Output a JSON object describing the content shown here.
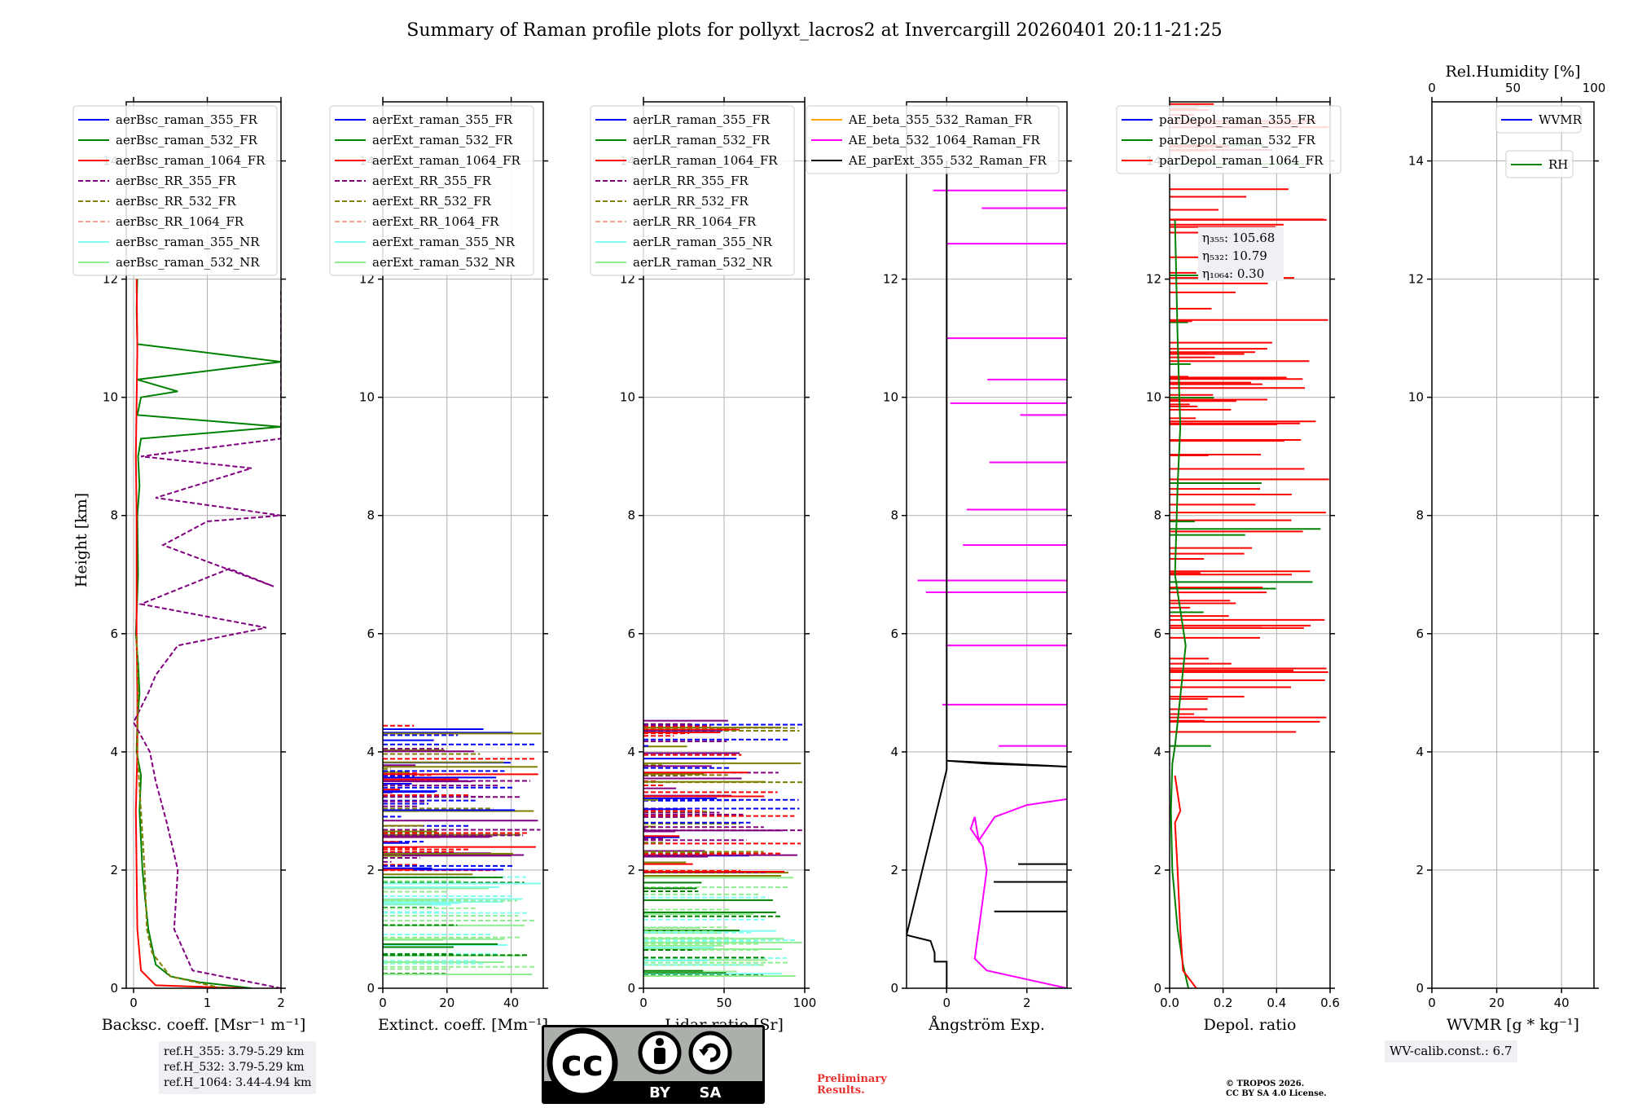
{
  "title": "Summary of Raman profile plots for pollyxt_lacros2 at Invercargill 20260401 20:11-21:25",
  "ylabel": "Height [km]",
  "chart_data": [
    {
      "type": "line",
      "name": "backscatter",
      "xlabel": "Backsc. coeff. [Msr⁻¹ m⁻¹]",
      "xlim": [
        -0.1,
        2
      ],
      "ylim": [
        0,
        15
      ],
      "xticks": [
        0,
        1,
        2
      ],
      "yticks": [
        0,
        2,
        4,
        6,
        8,
        10,
        12,
        14
      ],
      "legend": [
        "aerBsc_raman_355_FR",
        "aerBsc_raman_532_FR",
        "aerBsc_raman_1064_FR",
        "aerBsc_RR_355_FR",
        "aerBsc_RR_532_FR",
        "aerBsc_RR_1064_FR",
        "aerBsc_raman_355_NR",
        "aerBsc_raman_532_NR"
      ],
      "series": [
        {
          "name": "aerBsc_raman_532_FR",
          "color": "#008000",
          "dash": false,
          "x": [
            1.6,
            0.9,
            0.5,
            0.3,
            0.2,
            0.15,
            0.12,
            0.1,
            0.08,
            0.1,
            0.04,
            0.05,
            0.08,
            0.06,
            0.03,
            0.06,
            0.05,
            0.08,
            0.06,
            0.1,
            2.0,
            0.05,
            0.1,
            0.6,
            0.05,
            2.0,
            0.05,
            0.04,
            0.05
          ],
          "y": [
            0.0,
            0.1,
            0.2,
            0.4,
            1.0,
            1.6,
            2.0,
            2.5,
            3.0,
            3.6,
            4.0,
            4.5,
            5.0,
            5.5,
            6.0,
            7.0,
            8.0,
            8.5,
            9.0,
            9.3,
            9.5,
            9.7,
            10.0,
            10.1,
            10.3,
            10.6,
            10.9,
            11.5,
            12.0
          ]
        },
        {
          "name": "aerBsc_raman_1064_FR",
          "color": "#ff0000",
          "dash": false,
          "x": [
            1.5,
            0.3,
            0.1,
            0.05,
            0.04,
            0.03,
            0.05,
            0.05,
            0.04,
            0.04,
            0.03,
            0.05,
            0.04
          ],
          "y": [
            0.0,
            0.05,
            0.3,
            1.0,
            2.0,
            3.0,
            4.0,
            5.0,
            6.0,
            8.0,
            9.0,
            10.8,
            12.0
          ]
        },
        {
          "name": "aerBsc_RR_355_FR",
          "color": "#800080",
          "dash": true,
          "x": [
            2.0,
            0.8,
            0.55,
            0.6,
            0.45,
            0.3,
            0.22,
            0.0,
            0.2,
            0.3,
            0.6,
            1.8,
            0.1,
            1.3,
            1.9,
            0.4,
            1.0,
            2.0,
            0.3,
            1.6,
            0.1,
            2.0,
            2.0
          ],
          "y": [
            0.0,
            0.3,
            1.0,
            2.0,
            2.8,
            3.5,
            4.0,
            4.5,
            5.0,
            5.3,
            5.8,
            6.1,
            6.5,
            7.1,
            6.8,
            7.5,
            7.9,
            8.0,
            8.3,
            8.8,
            9.0,
            9.3,
            11.8
          ]
        },
        {
          "name": "aerBsc_RR_532_FR",
          "color": "#808000",
          "dash": true,
          "x": [
            1.2,
            0.5,
            0.25,
            0.18,
            0.15,
            0.1,
            0.05,
            0.06,
            0.04
          ],
          "y": [
            0.0,
            0.2,
            0.6,
            1.0,
            2.0,
            3.0,
            4.0,
            5.0,
            6.0
          ]
        }
      ]
    },
    {
      "type": "line",
      "name": "extinction",
      "xlabel": "Extinct. coeff. [Mm⁻¹]",
      "xlim": [
        0,
        50
      ],
      "ylim": [
        0,
        15
      ],
      "xticks": [
        0,
        20,
        40
      ],
      "yticks": [
        0,
        2,
        4,
        6,
        8,
        10,
        12,
        14
      ],
      "legend": [
        "aerExt_raman_355_FR",
        "aerExt_raman_532_FR",
        "aerExt_raman_1064_FR",
        "aerExt_RR_355_FR",
        "aerExt_RR_532_FR",
        "aerExt_RR_1064_FR",
        "aerExt_raman_355_NR",
        "aerExt_raman_532_NR"
      ],
      "series": []
    },
    {
      "type": "line",
      "name": "lidar-ratio",
      "xlabel": "Lidar ratio [Sr]",
      "xlim": [
        0,
        100
      ],
      "ylim": [
        0,
        15
      ],
      "xticks": [
        0,
        50,
        100
      ],
      "yticks": [
        0,
        2,
        4,
        6,
        8,
        10,
        12,
        14
      ],
      "legend": [
        "aerLR_raman_355_FR",
        "aerLR_raman_532_FR",
        "aerLR_raman_1064_FR",
        "aerLR_RR_355_FR",
        "aerLR_RR_532_FR",
        "aerLR_RR_1064_FR",
        "aerLR_raman_355_NR",
        "aerLR_raman_532_NR"
      ],
      "series": []
    },
    {
      "type": "line",
      "name": "angstrom",
      "xlabel": "Ångström Exp.",
      "xlim": [
        -1,
        3
      ],
      "ylim": [
        0,
        15
      ],
      "xticks": [
        0,
        2
      ],
      "yticks": [
        0,
        2,
        4,
        6,
        8,
        10,
        12,
        14
      ],
      "legend": [
        "AE_beta_355_532_Raman_FR",
        "AE_beta_532_1064_Raman_FR",
        "AE_parExt_355_532_Raman_FR"
      ],
      "series": [
        {
          "name": "AE_beta_532_1064_Raman_FR",
          "color": "#ff00ff",
          "dash": false,
          "x": [
            3.0,
            1.0,
            0.7,
            0.8,
            0.9,
            1.0,
            0.9,
            0.6,
            0.7,
            0.8,
            1.2,
            1.6,
            2.0,
            3.0
          ],
          "y": [
            0.0,
            0.3,
            0.5,
            1.0,
            1.5,
            2.0,
            2.4,
            2.7,
            2.9,
            2.5,
            2.9,
            3.0,
            3.1,
            3.2
          ]
        },
        {
          "name": "AE_parExt_355_532_Raman_FR",
          "color": "#000000",
          "dash": false,
          "x": [
            0.0,
            0.0,
            -0.3,
            -0.3,
            -0.4,
            -1.0,
            0.0,
            0.0,
            1.0,
            3.0,
            0.0,
            0.0
          ],
          "y": [
            0.0,
            0.45,
            0.45,
            0.6,
            0.8,
            0.9,
            3.7,
            3.85,
            3.8,
            3.75,
            3.85,
            14.0
          ]
        }
      ]
    },
    {
      "type": "line",
      "name": "depolarization",
      "xlabel": "Depol. ratio",
      "xlim": [
        0,
        0.6
      ],
      "ylim": [
        0,
        15
      ],
      "xticks": [
        0.0,
        0.2,
        0.4,
        0.6
      ],
      "yticks": [
        0,
        2,
        4,
        6,
        8,
        10,
        12,
        14
      ],
      "legend": [
        "parDepol_raman_355_FR",
        "parDepol_raman_532_FR",
        "parDepol_raman_1064_FR"
      ],
      "annotation": [
        "η₃₅₅: 105.68",
        "η₅₃₂: 10.79",
        "η₁₀₆₄: 0.30"
      ],
      "series": [
        {
          "name": "parDepol_raman_532_FR",
          "color": "#008000",
          "dash": false,
          "x": [
            0.07,
            0.05,
            0.03,
            0.01,
            0.005,
            0.01,
            0.02,
            0.03,
            0.06,
            0.02,
            0.03,
            0.04,
            0.03,
            0.02
          ],
          "y": [
            0.0,
            0.4,
            1.0,
            2.0,
            3.0,
            3.8,
            4.1,
            4.5,
            5.8,
            7.0,
            8.5,
            9.5,
            11.0,
            13.0
          ]
        },
        {
          "name": "parDepol_raman_1064_FR",
          "color": "#ff0000",
          "dash": false,
          "x": [
            0.1,
            0.05,
            0.04,
            0.03,
            0.02,
            0.04,
            0.03,
            0.02
          ],
          "y": [
            0.0,
            0.3,
            1.0,
            2.0,
            2.8,
            3.0,
            3.3,
            3.6
          ]
        }
      ]
    },
    {
      "type": "line",
      "name": "wvmr",
      "xlabel": "WVMR [g * kg⁻¹]",
      "top_xlabel": "Rel.Humidity [%]",
      "xlim": [
        0,
        50
      ],
      "ylim": [
        0,
        15
      ],
      "xticks": [
        0,
        20,
        40
      ],
      "top_xticks": [
        0,
        50,
        100
      ],
      "yticks": [
        0,
        2,
        4,
        6,
        8,
        10,
        12,
        14
      ],
      "legend": [
        "WVMR"
      ],
      "legend2": [
        "RH"
      ],
      "series": []
    }
  ],
  "footer": {
    "ref_lines": [
      "ref.H_355: 3.79-5.29 km",
      "ref.H_532: 3.79-5.29 km",
      "ref.H_1064: 3.44-4.94 km"
    ],
    "preliminary": [
      "Preliminary",
      "Results."
    ],
    "copyright": [
      "© TROPOS 2026.",
      "CC BY SA 4.0 License."
    ],
    "wv_calib": "WV-calib.const.: 6.7",
    "cc_left": "BY",
    "cc_right": "SA",
    "cc_main": "cc"
  }
}
